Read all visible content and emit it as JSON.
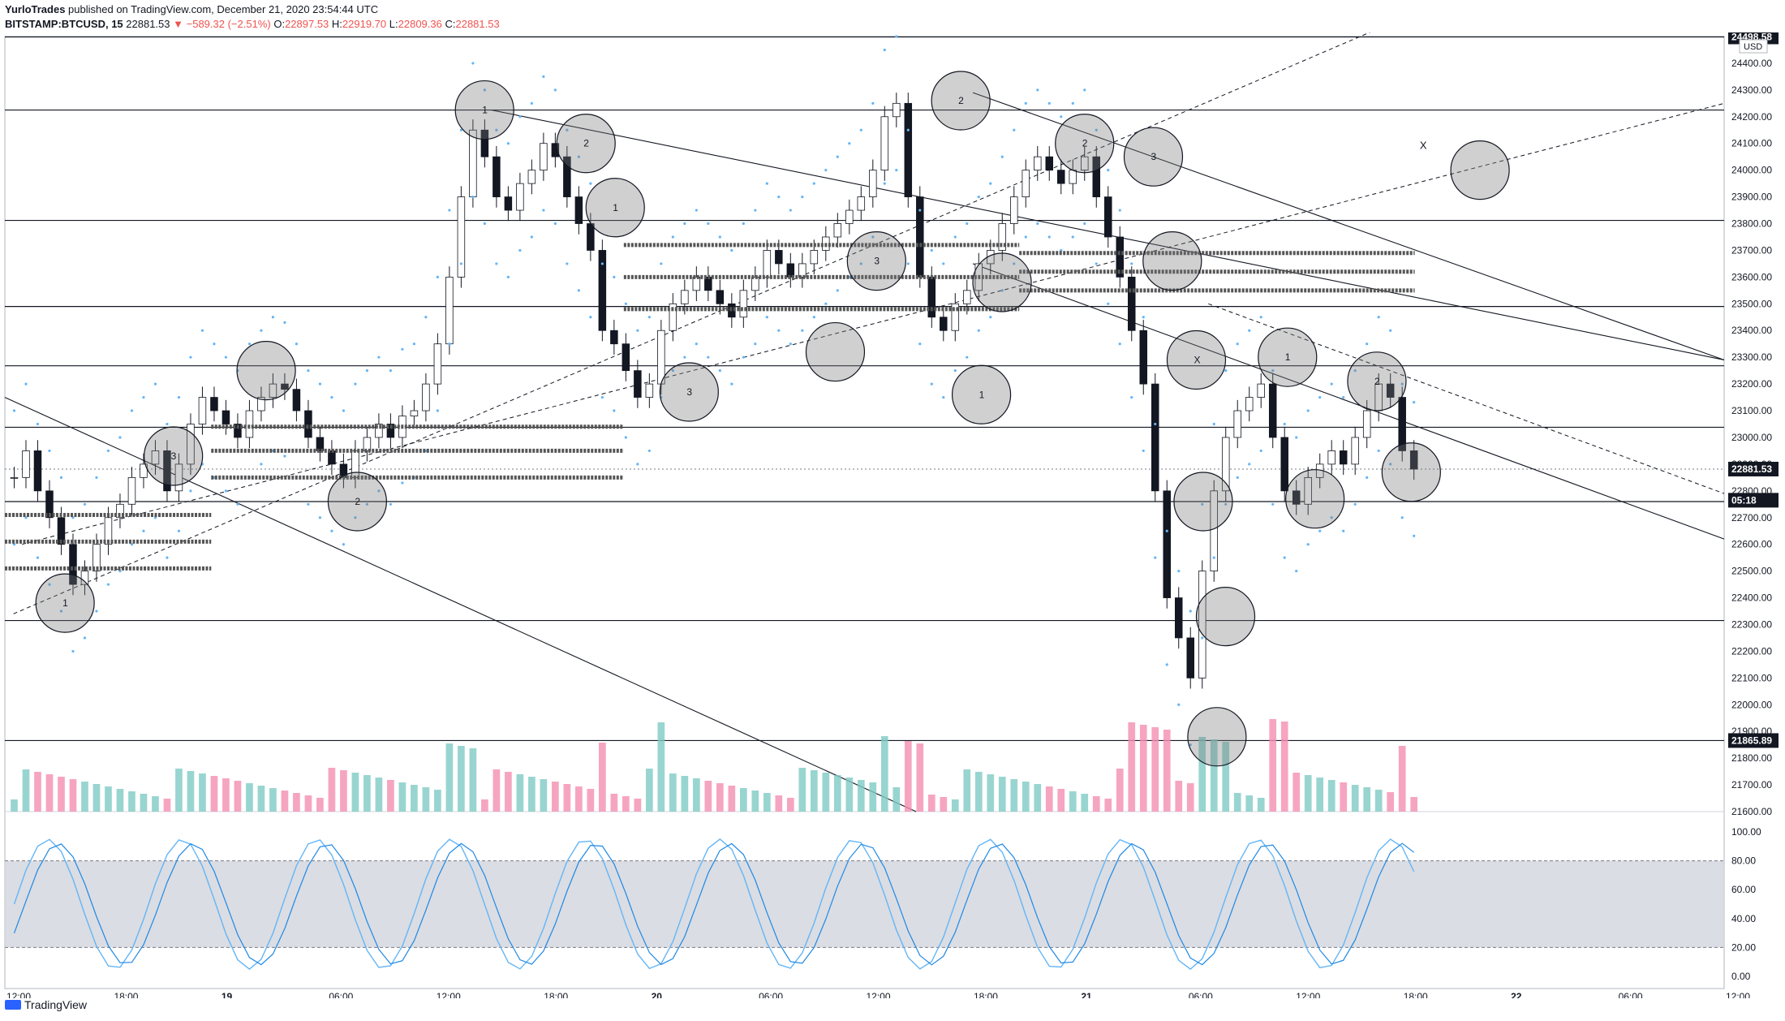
{
  "header": {
    "author": "YurloTrades",
    "published": "published on TradingView.com, December 21, 2020 23:54:44 UTC",
    "symbol": "BITSTAMP:BTCUSD, 15",
    "last": "22881.53",
    "change": "▼ −589.32 (−2.51%)",
    "o_label": "O:",
    "o": "22897.53",
    "h_label": "H:",
    "h": "22919.70",
    "l_label": "L:",
    "l": "22809.36",
    "c_label": "C:",
    "c": "22881.53"
  },
  "footer": {
    "logo": "TradingView"
  },
  "chart_data": {
    "type": "candlestick",
    "currency": "USD",
    "price_axis": [
      "24400.00",
      "24300.00",
      "24200.00",
      "24100.00",
      "24000.00",
      "23900.00",
      "23800.00",
      "23700.00",
      "23600.00",
      "23500.00",
      "23400.00",
      "23300.00",
      "23200.00",
      "23100.00",
      "23000.00",
      "22900.00",
      "22800.00",
      "22700.00",
      "22600.00",
      "22500.00",
      "22400.00",
      "22300.00",
      "22200.00",
      "22100.00",
      "22000.00",
      "21900.00",
      "21800.00",
      "21700.00",
      "21600.00"
    ],
    "ylim": [
      21600,
      24500
    ],
    "time_axis": [
      "12:00",
      "18:00",
      "19",
      "06:00",
      "12:00",
      "18:00",
      "20",
      "06:00",
      "12:00",
      "18:00",
      "21",
      "06:00",
      "12:00",
      "18:00",
      "22",
      "06:00",
      "12:00"
    ],
    "price_labels": [
      {
        "value": 24498.58,
        "text": "24498.58",
        "style": "black"
      },
      {
        "value": 22881.53,
        "text": "22881.53",
        "style": "black"
      },
      {
        "value": 22765,
        "text": "05:18",
        "style": "black"
      },
      {
        "value": 21865.89,
        "text": "21865.89",
        "style": "black"
      }
    ],
    "horizontal_levels": [
      24498.58,
      24225,
      23812,
      23490,
      23268,
      23038,
      22760,
      22315,
      21865.89
    ],
    "current_price": 22881.53,
    "candles_close": [
      22850,
      22950,
      22800,
      22700,
      22600,
      22450,
      22500,
      22600,
      22700,
      22750,
      22850,
      22900,
      22950,
      22800,
      22900,
      23050,
      23150,
      23100,
      23050,
      23000,
      23100,
      23150,
      23200,
      23180,
      23100,
      23000,
      22950,
      22900,
      22850,
      22950,
      23000,
      23050,
      23000,
      23080,
      23100,
      23200,
      23350,
      23600,
      23900,
      24150,
      24050,
      23900,
      23850,
      23950,
      24000,
      24100,
      24050,
      23900,
      23800,
      23700,
      23400,
      23350,
      23250,
      23150,
      23200,
      23400,
      23500,
      23550,
      23600,
      23550,
      23500,
      23450,
      23550,
      23600,
      23700,
      23650,
      23600,
      23650,
      23700,
      23750,
      23800,
      23850,
      23900,
      24000,
      24200,
      24250,
      23900,
      23600,
      23450,
      23400,
      23500,
      23550,
      23650,
      23700,
      23800,
      23900,
      24000,
      24050,
      24000,
      23950,
      24000,
      24050,
      23900,
      23750,
      23600,
      23400,
      23200,
      22800,
      22400,
      22250,
      22100,
      22500,
      22800,
      23000,
      23100,
      23150,
      23200,
      23000,
      22800,
      22750,
      22850,
      22900,
      22950,
      22900,
      23000,
      23100,
      23200,
      23150,
      22950,
      22881.53
    ],
    "volume_labels": [],
    "circles": [
      {
        "label": "1",
        "t": 0.035,
        "p": 22380
      },
      {
        "label": "3",
        "t": 0.098,
        "p": 22930
      },
      {
        "label": "",
        "t": 0.152,
        "p": 23250
      },
      {
        "label": "2",
        "t": 0.205,
        "p": 22760
      },
      {
        "label": "1",
        "t": 0.279,
        "p": 24225
      },
      {
        "label": "2",
        "t": 0.338,
        "p": 24100
      },
      {
        "label": "1",
        "t": 0.355,
        "p": 23860
      },
      {
        "label": "3",
        "t": 0.398,
        "p": 23170
      },
      {
        "label": "",
        "t": 0.483,
        "p": 23320
      },
      {
        "label": "3",
        "t": 0.507,
        "p": 23660
      },
      {
        "label": "",
        "t": 0.58,
        "p": 23580
      },
      {
        "label": "1",
        "t": 0.568,
        "p": 23160
      },
      {
        "label": "2",
        "t": 0.556,
        "p": 24260
      },
      {
        "label": "2",
        "t": 0.628,
        "p": 24100
      },
      {
        "label": "3",
        "t": 0.668,
        "p": 24050
      },
      {
        "label": "",
        "t": 0.679,
        "p": 23660
      },
      {
        "label": "X",
        "t": 0.693,
        "p": 23290
      },
      {
        "label": "",
        "t": 0.697,
        "p": 22760
      },
      {
        "label": "",
        "t": 0.71,
        "p": 22330
      },
      {
        "label": "",
        "t": 0.705,
        "p": 21880
      },
      {
        "label": "1",
        "t": 0.746,
        "p": 23300
      },
      {
        "label": "",
        "t": 0.762,
        "p": 22770
      },
      {
        "label": "2",
        "t": 0.798,
        "p": 23210
      },
      {
        "label": "",
        "t": 0.818,
        "p": 22870
      },
      {
        "label": "",
        "t": 0.858,
        "p": 24000
      }
    ],
    "x_marks": [
      {
        "label": "X",
        "t": 0.823,
        "p": 24080
      }
    ],
    "stoch_axis": [
      "100.00",
      "80.00",
      "60.00",
      "40.00",
      "20.00",
      "0.00"
    ],
    "stoch_band": [
      20,
      80
    ]
  },
  "colors": {
    "up": "#26a69a",
    "down": "#ef5350",
    "candle": "#131722",
    "bands": "#64b5f6",
    "vol_up": "#80cbc4",
    "vol_down": "#f48fb1",
    "stoch_k": "#64b5f6",
    "stoch_d": "#1e88e5",
    "stoch_fill": "#d1d4dc",
    "circle_fill": "rgba(120,120,120,0.35)"
  }
}
